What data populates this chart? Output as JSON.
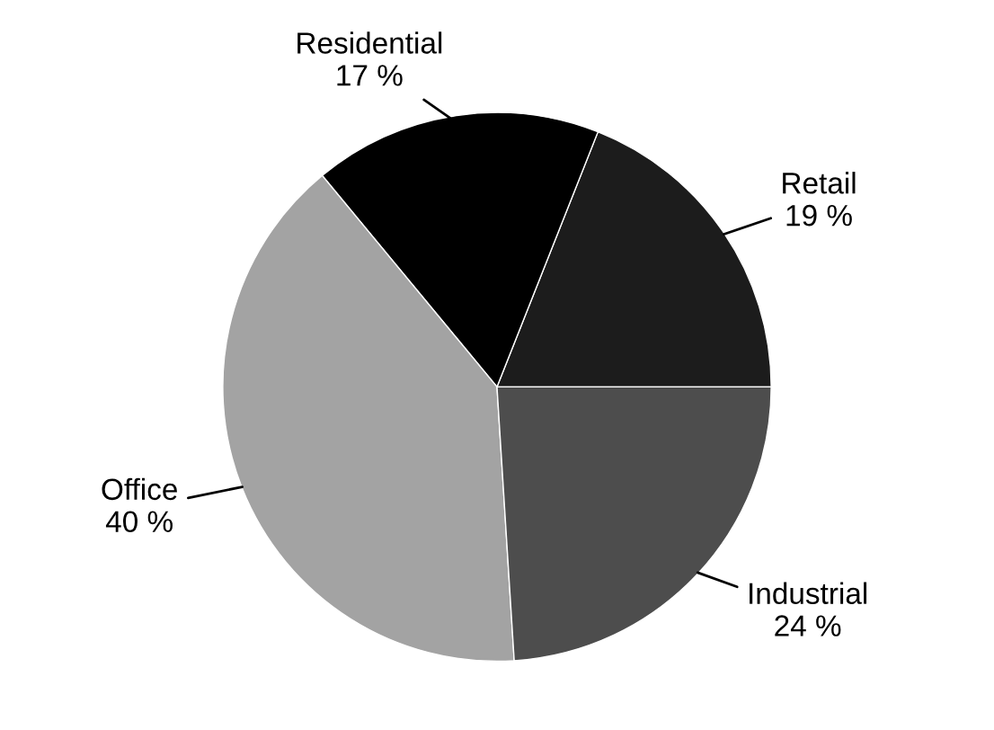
{
  "chart_data": {
    "type": "pie",
    "categories": [
      "Retail",
      "Residential",
      "Office",
      "Industrial"
    ],
    "values": [
      19,
      17,
      40,
      24
    ],
    "value_labels": [
      "19 %",
      "17 %",
      "40 %",
      "24 %"
    ],
    "colors": [
      "#1c1c1c",
      "#000000",
      "#a3a3a3",
      "#4d4d4d"
    ]
  }
}
